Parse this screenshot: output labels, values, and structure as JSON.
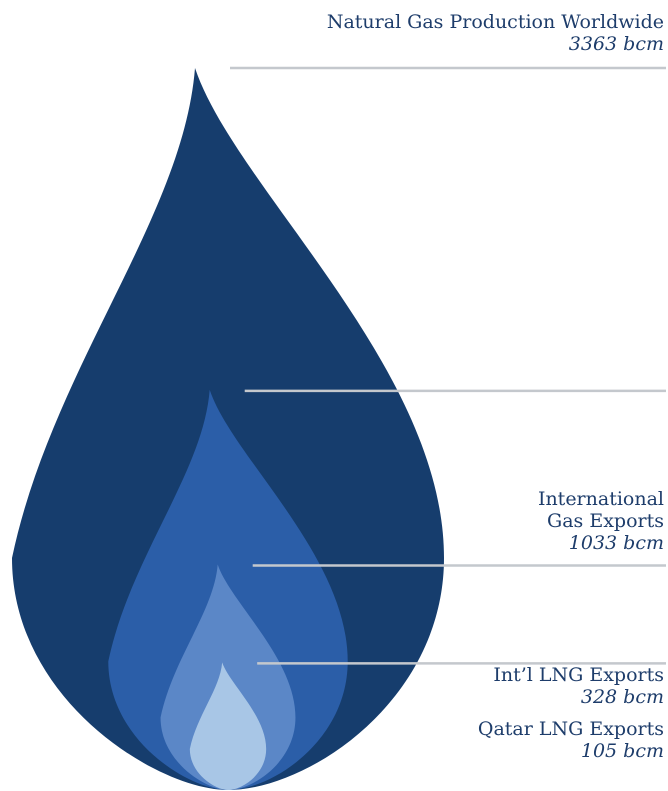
{
  "chart_data": {
    "type": "nested-drop",
    "unit": "bcm",
    "series": [
      {
        "label": "Natural Gas Production Worldwide",
        "value": 3363,
        "value_text": "3363 bcm"
      },
      {
        "label": "International\nGas Exports",
        "value": 1033,
        "value_text": "1033 bcm"
      },
      {
        "label": "Int’l LNG Exports",
        "value": 328,
        "value_text": "328 bcm"
      },
      {
        "label": "Qatar LNG Exports",
        "value": 105,
        "value_text": "105 bcm"
      }
    ]
  },
  "colors": {
    "drops": [
      "#163d6d",
      "#2b5ea8",
      "#5b87c7",
      "#a8c6e6"
    ],
    "text": "#1e3d6b",
    "leader": "#c4c8cd"
  }
}
